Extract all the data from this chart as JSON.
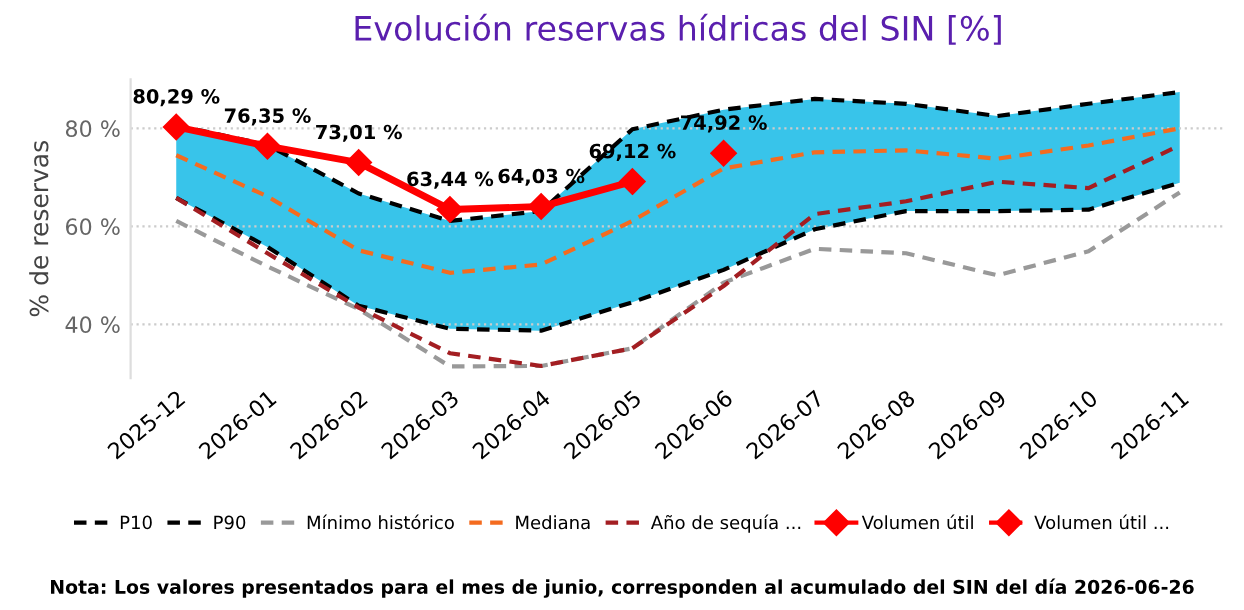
{
  "chart_data": {
    "type": "line",
    "title": "Evolución reservas hídricas del SIN [%]",
    "ylabel": "% de reservas",
    "categories": [
      "2025-12",
      "2026-01",
      "2026-02",
      "2026-03",
      "2026-04",
      "2026-05",
      "2026-06",
      "2026-07",
      "2026-08",
      "2026-09",
      "2026-10",
      "2026-11"
    ],
    "series": [
      {
        "name": "P10",
        "color": "#000000",
        "line_style": "dashed",
        "values": [
          65.8,
          55.8,
          43.8,
          39.1,
          38.7,
          44.5,
          51.1,
          59.4,
          63.1,
          63.1,
          63.4,
          68.9
        ]
      },
      {
        "name": "P90",
        "type": "area",
        "color": "#38c4ea",
        "line_style": "dashed",
        "values": [
          80.6,
          76.6,
          66.7,
          61.1,
          63.1,
          79.8,
          83.8,
          86.0,
          85.0,
          82.5,
          85.0,
          87.4
        ]
      },
      {
        "name": "Mínimo histórico",
        "color": "#999999",
        "line_style": "dashed",
        "values": [
          61.1,
          51.8,
          43.1,
          31.4,
          31.5,
          35.1,
          48.5,
          55.4,
          54.5,
          50.0,
          54.9,
          66.9
        ]
      },
      {
        "name": "Mediana",
        "color": "#f46b1f",
        "line_style": "dashed",
        "values": [
          74.5,
          66.1,
          55.1,
          50.5,
          52.2,
          61.1,
          71.8,
          75.1,
          75.5,
          73.8,
          76.5,
          80.0
        ]
      },
      {
        "name": "Año de sequía ...",
        "color": "#a31e22",
        "line_style": "dashed",
        "values": [
          65.8,
          54.5,
          43.4,
          34.1,
          31.5,
          35.1,
          47.8,
          62.5,
          65.1,
          69.1,
          67.8,
          76.5
        ]
      },
      {
        "name": "Volumen útil",
        "color": "#ff0000",
        "line_style": "solid",
        "marker": "diamond",
        "values": [
          80.29,
          76.35,
          73.01,
          63.44,
          64.03,
          69.12,
          null,
          null,
          null,
          null,
          null,
          null
        ],
        "value_labels": [
          "80,29 %",
          "76,35 %",
          "73,01 %",
          "63,44 %",
          "64,03 %",
          "69,12 %",
          null,
          null,
          null,
          null,
          null,
          null
        ]
      },
      {
        "name": "Volumen útil ...",
        "color": "#ff0000",
        "line_style": "dashed",
        "marker": "diamond",
        "values": [
          null,
          null,
          null,
          null,
          null,
          null,
          74.92,
          null,
          null,
          null,
          null,
          null
        ],
        "value_labels": [
          null,
          null,
          null,
          null,
          null,
          null,
          "74,92 %",
          null,
          null,
          null,
          null,
          null
        ]
      }
    ],
    "ylim": [
      29,
      90
    ],
    "yticks": [
      {
        "value": 40,
        "label": "40 %"
      },
      {
        "value": 60,
        "label": "60 %"
      },
      {
        "value": 80,
        "label": "80 %"
      }
    ],
    "grid": "y",
    "legend": "bottom",
    "annotations": [
      "Nota: Los valores presentados para el mes de junio, corresponden al acumulado del SIN del día 2026-06-26"
    ]
  }
}
